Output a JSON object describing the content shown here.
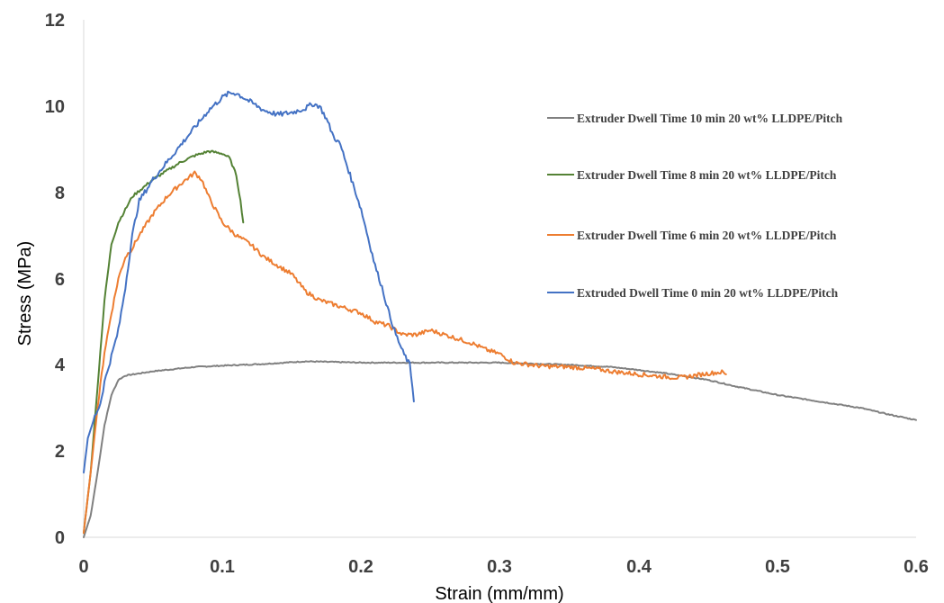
{
  "chart_data": {
    "type": "line",
    "xlabel": "Strain (mm/mm)",
    "ylabel": "Stress (MPa)",
    "xlim": [
      0,
      0.6
    ],
    "ylim": [
      0,
      12
    ],
    "xticks": [
      "0",
      "0.1",
      "0.2",
      "0.3",
      "0.4",
      "0.5",
      "0.6"
    ],
    "yticks": [
      "0",
      "2",
      "4",
      "6",
      "8",
      "10",
      "12"
    ],
    "grid": false,
    "legend_position": "right",
    "series": [
      {
        "name": "Extruder Dwell Time 10 min 20 wt% LLDPE/Pitch",
        "color": "#808080",
        "noise": 0.012,
        "points": [
          [
            0,
            0
          ],
          [
            0.005,
            0.5
          ],
          [
            0.01,
            1.5
          ],
          [
            0.015,
            2.6
          ],
          [
            0.02,
            3.3
          ],
          [
            0.025,
            3.65
          ],
          [
            0.03,
            3.75
          ],
          [
            0.05,
            3.85
          ],
          [
            0.08,
            3.95
          ],
          [
            0.1,
            3.98
          ],
          [
            0.13,
            4.02
          ],
          [
            0.16,
            4.08
          ],
          [
            0.2,
            4.05
          ],
          [
            0.25,
            4.05
          ],
          [
            0.3,
            4.05
          ],
          [
            0.35,
            4.0
          ],
          [
            0.38,
            3.95
          ],
          [
            0.4,
            3.88
          ],
          [
            0.42,
            3.8
          ],
          [
            0.45,
            3.65
          ],
          [
            0.47,
            3.5
          ],
          [
            0.5,
            3.3
          ],
          [
            0.53,
            3.15
          ],
          [
            0.56,
            3.0
          ],
          [
            0.58,
            2.85
          ],
          [
            0.6,
            2.72
          ]
        ]
      },
      {
        "name": "Extruder Dwell Time 8 min 20 wt% LLDPE/Pitch",
        "color": "#548235",
        "noise": 0.03,
        "points": [
          [
            0,
            0.1
          ],
          [
            0.005,
            1.5
          ],
          [
            0.01,
            3.5
          ],
          [
            0.015,
            5.5
          ],
          [
            0.02,
            6.8
          ],
          [
            0.025,
            7.3
          ],
          [
            0.035,
            7.9
          ],
          [
            0.05,
            8.3
          ],
          [
            0.06,
            8.5
          ],
          [
            0.07,
            8.7
          ],
          [
            0.08,
            8.85
          ],
          [
            0.09,
            8.95
          ],
          [
            0.1,
            8.9
          ],
          [
            0.105,
            8.8
          ],
          [
            0.11,
            8.4
          ],
          [
            0.113,
            7.8
          ],
          [
            0.115,
            7.3
          ]
        ]
      },
      {
        "name": "Extruder Dwell Time 6 min 20 wt% LLDPE/Pitch",
        "color": "#ed7d31",
        "noise": 0.05,
        "points": [
          [
            0,
            0.1
          ],
          [
            0.005,
            1.5
          ],
          [
            0.01,
            3.0
          ],
          [
            0.015,
            4.3
          ],
          [
            0.02,
            5.2
          ],
          [
            0.025,
            6.0
          ],
          [
            0.03,
            6.5
          ],
          [
            0.035,
            6.7
          ],
          [
            0.04,
            7.0
          ],
          [
            0.05,
            7.5
          ],
          [
            0.06,
            7.9
          ],
          [
            0.07,
            8.2
          ],
          [
            0.08,
            8.45
          ],
          [
            0.085,
            8.3
          ],
          [
            0.09,
            7.9
          ],
          [
            0.1,
            7.3
          ],
          [
            0.11,
            7.0
          ],
          [
            0.12,
            6.8
          ],
          [
            0.13,
            6.5
          ],
          [
            0.14,
            6.3
          ],
          [
            0.15,
            6.1
          ],
          [
            0.16,
            5.7
          ],
          [
            0.17,
            5.5
          ],
          [
            0.18,
            5.4
          ],
          [
            0.19,
            5.3
          ],
          [
            0.2,
            5.2
          ],
          [
            0.21,
            5.0
          ],
          [
            0.22,
            4.9
          ],
          [
            0.23,
            4.7
          ],
          [
            0.24,
            4.7
          ],
          [
            0.25,
            4.8
          ],
          [
            0.26,
            4.7
          ],
          [
            0.27,
            4.6
          ],
          [
            0.28,
            4.5
          ],
          [
            0.29,
            4.35
          ],
          [
            0.3,
            4.25
          ],
          [
            0.31,
            4.05
          ],
          [
            0.33,
            3.97
          ],
          [
            0.35,
            3.95
          ],
          [
            0.37,
            3.9
          ],
          [
            0.38,
            3.85
          ],
          [
            0.4,
            3.78
          ],
          [
            0.42,
            3.72
          ],
          [
            0.43,
            3.7
          ],
          [
            0.44,
            3.75
          ],
          [
            0.45,
            3.8
          ],
          [
            0.46,
            3.83
          ],
          [
            0.463,
            3.78
          ]
        ]
      },
      {
        "name": "Extruded Dwell Time 0 min 20 wt% LLDPE/Pitch",
        "color": "#4472c4",
        "noise": 0.06,
        "points": [
          [
            0,
            1.5
          ],
          [
            0.003,
            2.3
          ],
          [
            0.008,
            2.8
          ],
          [
            0.012,
            3.1
          ],
          [
            0.015,
            3.6
          ],
          [
            0.02,
            4.2
          ],
          [
            0.025,
            4.8
          ],
          [
            0.03,
            5.8
          ],
          [
            0.035,
            7.0
          ],
          [
            0.04,
            7.8
          ],
          [
            0.05,
            8.3
          ],
          [
            0.06,
            8.7
          ],
          [
            0.07,
            9.1
          ],
          [
            0.08,
            9.5
          ],
          [
            0.09,
            9.9
          ],
          [
            0.1,
            10.2
          ],
          [
            0.105,
            10.3
          ],
          [
            0.11,
            10.3
          ],
          [
            0.12,
            10.1
          ],
          [
            0.13,
            9.9
          ],
          [
            0.14,
            9.8
          ],
          [
            0.15,
            9.85
          ],
          [
            0.16,
            9.95
          ],
          [
            0.165,
            10.05
          ],
          [
            0.17,
            10.0
          ],
          [
            0.175,
            9.7
          ],
          [
            0.18,
            9.3
          ],
          [
            0.185,
            9.1
          ],
          [
            0.19,
            8.6
          ],
          [
            0.2,
            7.6
          ],
          [
            0.21,
            6.3
          ],
          [
            0.215,
            5.8
          ],
          [
            0.22,
            5.2
          ],
          [
            0.225,
            4.7
          ],
          [
            0.23,
            4.3
          ],
          [
            0.235,
            4.0
          ],
          [
            0.237,
            3.5
          ],
          [
            0.238,
            3.15
          ]
        ]
      }
    ]
  }
}
